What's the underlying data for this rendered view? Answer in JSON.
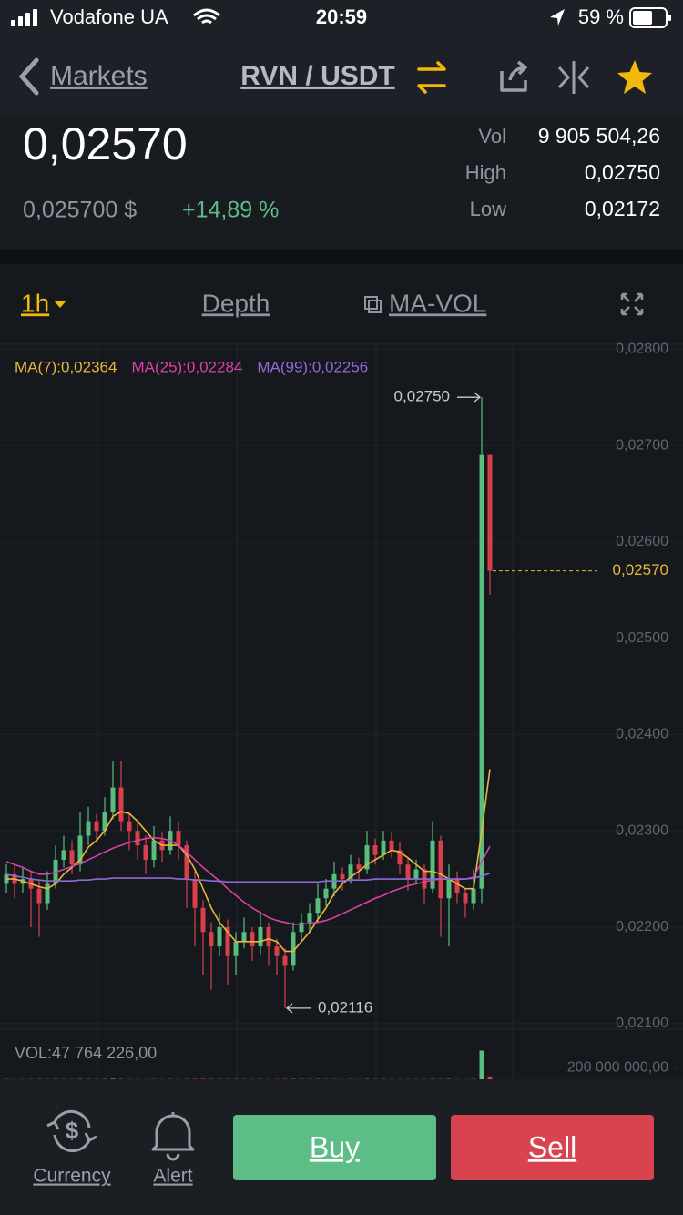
{
  "status_bar": {
    "carrier": "Vodafone UA",
    "time": "20:59",
    "battery": "59 %"
  },
  "header": {
    "back": "Markets",
    "pair": "RVN / USDT"
  },
  "ticker": {
    "price": "0,02570",
    "price_usd": "0,025700 $",
    "change": "+14,89 %",
    "stats": [
      {
        "label": "Vol",
        "value": "9 905 504,26"
      },
      {
        "label": "High",
        "value": "0,02750"
      },
      {
        "label": "Low",
        "value": "0,02172"
      }
    ]
  },
  "tabs": [
    "1h",
    "Depth",
    "MA-VOL"
  ],
  "chart_data": {
    "type": "candlestick",
    "candles": [
      [
        0.02245,
        0.02265,
        0.02235,
        0.02255
      ],
      [
        0.02255,
        0.02265,
        0.0223,
        0.02245
      ],
      [
        0.02245,
        0.02262,
        0.02235,
        0.0225
      ],
      [
        0.0225,
        0.02258,
        0.022,
        0.0224
      ],
      [
        0.0224,
        0.02248,
        0.0219,
        0.02225
      ],
      [
        0.02225,
        0.02258,
        0.02218,
        0.02245
      ],
      [
        0.02245,
        0.02285,
        0.0224,
        0.0227
      ],
      [
        0.0227,
        0.02295,
        0.02262,
        0.0228
      ],
      [
        0.0228,
        0.0229,
        0.02255,
        0.02265
      ],
      [
        0.02265,
        0.0232,
        0.02258,
        0.02295
      ],
      [
        0.02295,
        0.02325,
        0.02285,
        0.0231
      ],
      [
        0.0231,
        0.02318,
        0.0229,
        0.023
      ],
      [
        0.023,
        0.02335,
        0.02295,
        0.0232
      ],
      [
        0.0232,
        0.02372,
        0.02312,
        0.02345
      ],
      [
        0.02345,
        0.02372,
        0.023,
        0.0231
      ],
      [
        0.0231,
        0.02318,
        0.0228,
        0.023
      ],
      [
        0.023,
        0.02312,
        0.0227,
        0.02285
      ],
      [
        0.02285,
        0.02295,
        0.02255,
        0.0227
      ],
      [
        0.0227,
        0.02305,
        0.02262,
        0.0229
      ],
      [
        0.0229,
        0.02298,
        0.02268,
        0.0228
      ],
      [
        0.0228,
        0.02315,
        0.02275,
        0.023
      ],
      [
        0.023,
        0.0231,
        0.0227,
        0.02285
      ],
      [
        0.02285,
        0.0229,
        0.0222,
        0.0225
      ],
      [
        0.0225,
        0.02258,
        0.0218,
        0.0222
      ],
      [
        0.0222,
        0.02228,
        0.0215,
        0.02195
      ],
      [
        0.02195,
        0.02205,
        0.02135,
        0.0218
      ],
      [
        0.0218,
        0.02215,
        0.0217,
        0.022
      ],
      [
        0.022,
        0.02208,
        0.0214,
        0.0217
      ],
      [
        0.0217,
        0.02195,
        0.0215,
        0.02185
      ],
      [
        0.02185,
        0.0221,
        0.02178,
        0.02195
      ],
      [
        0.02195,
        0.022,
        0.02165,
        0.0218
      ],
      [
        0.0218,
        0.02215,
        0.02172,
        0.022
      ],
      [
        0.022,
        0.02205,
        0.0216,
        0.0218
      ],
      [
        0.0218,
        0.02188,
        0.0215,
        0.0217
      ],
      [
        0.0217,
        0.02178,
        0.02116,
        0.0216
      ],
      [
        0.0216,
        0.02205,
        0.02155,
        0.02195
      ],
      [
        0.02195,
        0.02215,
        0.02185,
        0.02205
      ],
      [
        0.02205,
        0.02225,
        0.02195,
        0.02215
      ],
      [
        0.02215,
        0.02245,
        0.02205,
        0.0223
      ],
      [
        0.0223,
        0.0225,
        0.02222,
        0.0224
      ],
      [
        0.0224,
        0.02268,
        0.02232,
        0.02255
      ],
      [
        0.02255,
        0.02262,
        0.02238,
        0.0225
      ],
      [
        0.0225,
        0.02275,
        0.02245,
        0.02265
      ],
      [
        0.02265,
        0.02272,
        0.0225,
        0.0226
      ],
      [
        0.0226,
        0.023,
        0.02255,
        0.02285
      ],
      [
        0.02285,
        0.02292,
        0.02265,
        0.02275
      ],
      [
        0.02275,
        0.023,
        0.0227,
        0.0229
      ],
      [
        0.0229,
        0.02298,
        0.02272,
        0.0228
      ],
      [
        0.0228,
        0.02288,
        0.02255,
        0.02265
      ],
      [
        0.02265,
        0.02272,
        0.02238,
        0.0225
      ],
      [
        0.0225,
        0.0227,
        0.02245,
        0.0226
      ],
      [
        0.0226,
        0.02265,
        0.02225,
        0.0224
      ],
      [
        0.0224,
        0.0231,
        0.02235,
        0.0229
      ],
      [
        0.0229,
        0.02295,
        0.0219,
        0.0223
      ],
      [
        0.0223,
        0.02265,
        0.0218,
        0.0225
      ],
      [
        0.0225,
        0.02258,
        0.02225,
        0.02235
      ],
      [
        0.02235,
        0.0224,
        0.0221,
        0.02225
      ],
      [
        0.02225,
        0.0226,
        0.02218,
        0.0224
      ],
      [
        0.0224,
        0.0275,
        0.02225,
        0.0269
      ],
      [
        0.0269,
        0.0269,
        0.02545,
        0.0257
      ]
    ],
    "up_color": "#58bd7d",
    "down_color": "#d9404c",
    "series": [
      {
        "name": "MA(7):0,02364",
        "color": "#e8b73a",
        "values": [
          0.0225,
          0.0225,
          0.02248,
          0.02245,
          0.02242,
          0.0224,
          0.02245,
          0.02255,
          0.02262,
          0.0227,
          0.02283,
          0.0229,
          0.023,
          0.02315,
          0.0232,
          0.02318,
          0.0231,
          0.023,
          0.0229,
          0.02285,
          0.02285,
          0.02285,
          0.02275,
          0.0226,
          0.0224,
          0.0222,
          0.02205,
          0.02195,
          0.02185,
          0.02185,
          0.02185,
          0.02185,
          0.02188,
          0.02185,
          0.02175,
          0.02175,
          0.02185,
          0.02195,
          0.02208,
          0.0222,
          0.02235,
          0.02245,
          0.02252,
          0.02258,
          0.02265,
          0.0227,
          0.02275,
          0.0228,
          0.02278,
          0.02272,
          0.02265,
          0.02258,
          0.02258,
          0.02255,
          0.0225,
          0.02245,
          0.0224,
          0.0224,
          0.023,
          0.02364
        ]
      },
      {
        "name": "MA(25):0,02284",
        "color": "#d940a8",
        "values": [
          0.02268,
          0.02265,
          0.02262,
          0.02258,
          0.02255,
          0.02255,
          0.02257,
          0.0226,
          0.02263,
          0.02266,
          0.0227,
          0.02274,
          0.02278,
          0.02282,
          0.02285,
          0.02288,
          0.0229,
          0.02292,
          0.02293,
          0.02292,
          0.0229,
          0.02285,
          0.02278,
          0.0227,
          0.02262,
          0.02255,
          0.02248,
          0.0224,
          0.02233,
          0.02226,
          0.0222,
          0.02215,
          0.0221,
          0.02207,
          0.02205,
          0.02203,
          0.02203,
          0.02204,
          0.02205,
          0.02207,
          0.0221,
          0.02214,
          0.02218,
          0.02222,
          0.02226,
          0.0223,
          0.02233,
          0.02237,
          0.0224,
          0.02243,
          0.02245,
          0.02247,
          0.02249,
          0.0225,
          0.0225,
          0.0225,
          0.0225,
          0.02252,
          0.02268,
          0.02284
        ]
      },
      {
        "name": "MA(99):0,02256",
        "color": "#8f6bd6",
        "values": [
          0.02255,
          0.02253,
          0.02252,
          0.0225,
          0.02249,
          0.02248,
          0.02248,
          0.02248,
          0.02248,
          0.02249,
          0.02249,
          0.0225,
          0.0225,
          0.02251,
          0.02251,
          0.02251,
          0.02251,
          0.02251,
          0.02251,
          0.02251,
          0.02251,
          0.0225,
          0.0225,
          0.02249,
          0.02249,
          0.02248,
          0.02248,
          0.02247,
          0.02247,
          0.02247,
          0.02247,
          0.02247,
          0.02247,
          0.02247,
          0.02247,
          0.02247,
          0.02247,
          0.02247,
          0.02247,
          0.02248,
          0.02248,
          0.02248,
          0.02249,
          0.02249,
          0.02249,
          0.0225,
          0.0225,
          0.0225,
          0.0225,
          0.0225,
          0.0225,
          0.0225,
          0.0225,
          0.0225,
          0.0225,
          0.0225,
          0.0225,
          0.02251,
          0.02253,
          0.02256
        ]
      }
    ],
    "ylim": [
      0.02096,
      0.02805
    ],
    "yticks": [
      {
        "value": 0.021,
        "label": "0,02100"
      },
      {
        "value": 0.022,
        "label": "0,02200"
      },
      {
        "value": 0.023,
        "label": "0,02300"
      },
      {
        "value": 0.024,
        "label": "0,02400"
      },
      {
        "value": 0.025,
        "label": "0,02500"
      },
      {
        "value": 0.026,
        "label": "0,02600"
      },
      {
        "value": 0.027,
        "label": "0,02700"
      },
      {
        "value": 0.028,
        "label": "0,02800"
      }
    ],
    "annotations": {
      "high": {
        "value": 0.0275,
        "label": "0,02750"
      },
      "low": {
        "value": 0.02116,
        "label": "0,02116"
      },
      "last": {
        "value": 0.0257,
        "label": "0,02570"
      }
    },
    "volume_label": "VOL:47 764 226,00",
    "volumes": [
      4000000,
      3500000,
      3000000,
      5000000,
      6000000,
      4000000,
      5500000,
      4500000,
      3500000,
      6000000,
      5000000,
      4000000,
      4500000,
      9000000,
      7000000,
      4000000,
      3500000,
      3000000,
      3500000,
      3000000,
      4000000,
      3500000,
      6000000,
      7000000,
      8000000,
      7500000,
      5000000,
      6000000,
      4500000,
      4000000,
      3500000,
      4000000,
      3500000,
      4000000,
      6500000,
      5500000,
      4500000,
      4000000,
      4500000,
      4000000,
      4000000,
      3500000,
      4000000,
      3500000,
      5000000,
      4000000,
      4500000,
      3500000,
      3500000,
      4000000,
      3500000,
      4000000,
      6000000,
      6500000,
      5500000,
      3500000,
      3500000,
      4500000,
      490000000,
      47764226
    ],
    "volume_ylim": [
      0,
      700000000
    ],
    "volume_ticks": [
      {
        "value": 200000000,
        "label": "200 000 000,00"
      }
    ]
  },
  "bottom_bar": {
    "currency": "Currency",
    "alert": "Alert",
    "buy": "Buy",
    "sell": "Sell"
  }
}
